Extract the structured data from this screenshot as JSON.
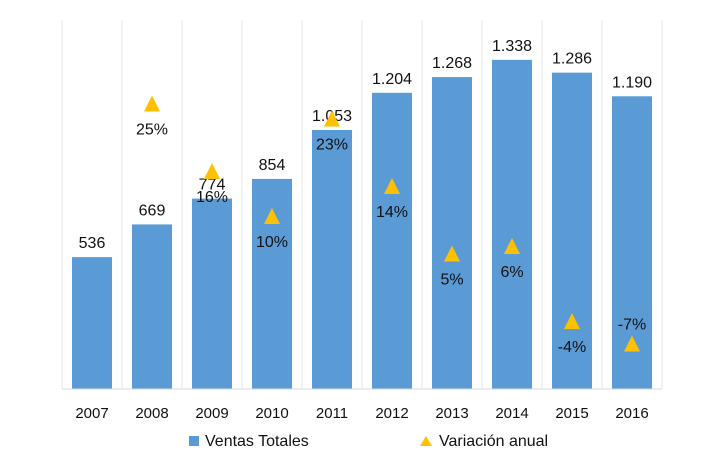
{
  "chart_data": {
    "type": "bar",
    "categories": [
      "2007",
      "2008",
      "2009",
      "2010",
      "2011",
      "2012",
      "2013",
      "2014",
      "2015",
      "2016"
    ],
    "series": [
      {
        "name": "Ventas Totales",
        "kind": "bar",
        "color": "#5b9bd5",
        "values": [
          536,
          669,
          774,
          854,
          1053,
          1204,
          1268,
          1338,
          1286,
          1190
        ],
        "labels": [
          "536",
          "669",
          "774",
          "854",
          "1.053",
          "1.204",
          "1.268",
          "1.338",
          "1.286",
          "1.190"
        ]
      },
      {
        "name": "Variación anual",
        "kind": "marker",
        "marker": "triangle",
        "color": "#ffc000",
        "values": [
          null,
          25,
          16,
          10,
          23,
          14,
          5,
          6,
          -4,
          -7
        ],
        "labels": [
          "",
          "25%",
          "16%",
          "10%",
          "23%",
          "14%",
          "5%",
          "6%",
          "-4%",
          "-7%"
        ]
      }
    ],
    "ylim_primary": [
      0,
      1500
    ],
    "ylim_secondary": [
      -10,
      30
    ],
    "grid": false,
    "legend": "bottom"
  }
}
